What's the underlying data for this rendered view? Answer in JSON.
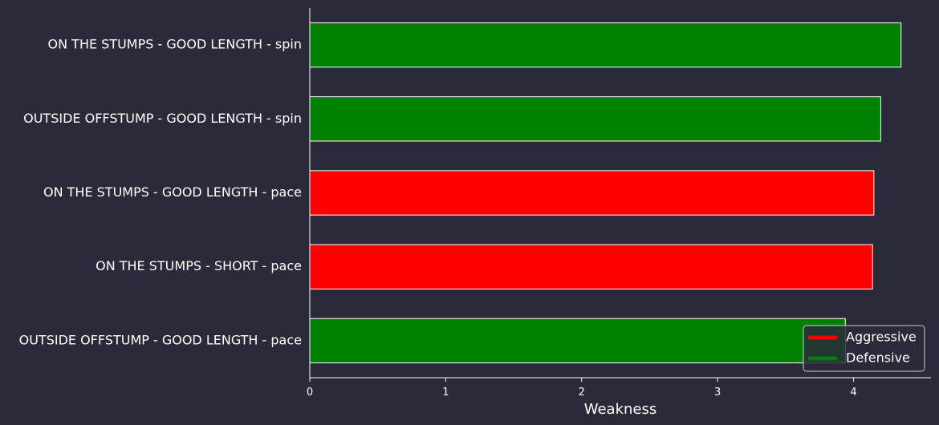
{
  "chart_data": {
    "type": "bar",
    "orientation": "horizontal",
    "title": "",
    "xlabel": "Weakness",
    "ylabel": "",
    "xlim": [
      0,
      4.57
    ],
    "xticks": [
      "0",
      "1",
      "2",
      "3",
      "4"
    ],
    "grid": false,
    "legend_position": "bottom-right",
    "categories": [
      "ON THE STUMPS - GOOD LENGTH - spin",
      "OUTSIDE OFFSTUMP - GOOD LENGTH - spin",
      "ON THE STUMPS - GOOD LENGTH - pace",
      "ON THE STUMPS - SHORT - pace",
      "OUTSIDE OFFSTUMP - GOOD LENGTH - pace"
    ],
    "values": [
      4.35,
      4.2,
      4.15,
      4.14,
      3.94
    ],
    "bar_types": [
      "Defensive",
      "Defensive",
      "Aggressive",
      "Aggressive",
      "Defensive"
    ],
    "legend": [
      {
        "label": "Aggressive",
        "color": "#ff0000"
      },
      {
        "label": "Defensive",
        "color": "#008000"
      }
    ],
    "colors": {
      "background": "#2b2a3b",
      "axis": "#ffffff",
      "bar_edge": "#ffffff"
    }
  }
}
